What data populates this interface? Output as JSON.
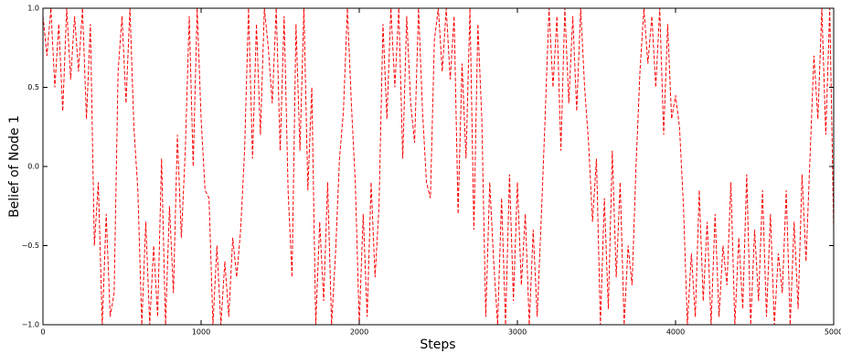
{
  "chart_data": {
    "type": "line",
    "xlabel": "Steps",
    "ylabel": "Belief of Node 1",
    "color": "#ff0000",
    "line_style": "dashed",
    "xlim": [
      0,
      5000
    ],
    "ylim": [
      -1,
      1
    ],
    "xticks": [
      0,
      1000,
      2000,
      3000,
      4000,
      5000
    ],
    "yticks": [
      {
        "value": -1,
        "label": "−1.0"
      },
      {
        "value": -0.5,
        "label": "−0.5"
      },
      {
        "value": 0,
        "label": "0.0"
      },
      {
        "value": 0.5,
        "label": "0.5"
      },
      {
        "value": 1,
        "label": "1.0"
      }
    ],
    "x": [
      0,
      25,
      50,
      75,
      100,
      125,
      150,
      175,
      200,
      225,
      250,
      275,
      300,
      325,
      350,
      375,
      400,
      425,
      450,
      475,
      500,
      525,
      550,
      575,
      600,
      625,
      650,
      675,
      700,
      725,
      750,
      775,
      800,
      825,
      850,
      875,
      900,
      925,
      950,
      975,
      1000,
      1025,
      1050,
      1075,
      1100,
      1125,
      1150,
      1175,
      1200,
      1225,
      1250,
      1275,
      1300,
      1325,
      1350,
      1375,
      1400,
      1425,
      1450,
      1475,
      1500,
      1525,
      1550,
      1575,
      1600,
      1625,
      1650,
      1675,
      1700,
      1725,
      1750,
      1775,
      1800,
      1825,
      1850,
      1875,
      1900,
      1925,
      1950,
      1975,
      2000,
      2025,
      2050,
      2075,
      2100,
      2125,
      2150,
      2175,
      2200,
      2225,
      2250,
      2275,
      2300,
      2325,
      2350,
      2375,
      2400,
      2425,
      2450,
      2475,
      2500,
      2525,
      2550,
      2575,
      2600,
      2625,
      2650,
      2675,
      2700,
      2725,
      2750,
      2775,
      2800,
      2825,
      2850,
      2875,
      2900,
      2925,
      2950,
      2975,
      3000,
      3025,
      3050,
      3075,
      3100,
      3125,
      3150,
      3175,
      3200,
      3225,
      3250,
      3275,
      3300,
      3325,
      3350,
      3375,
      3400,
      3425,
      3450,
      3475,
      3500,
      3525,
      3550,
      3575,
      3600,
      3625,
      3650,
      3675,
      3700,
      3725,
      3750,
      3775,
      3800,
      3825,
      3850,
      3875,
      3900,
      3925,
      3950,
      3975,
      4000,
      4025,
      4050,
      4075,
      4100,
      4125,
      4150,
      4175,
      4200,
      4225,
      4250,
      4275,
      4300,
      4325,
      4350,
      4375,
      4400,
      4425,
      4450,
      4475,
      4500,
      4525,
      4550,
      4575,
      4600,
      4625,
      4650,
      4675,
      4700,
      4725,
      4750,
      4775,
      4800,
      4825,
      4850,
      4875,
      4900,
      4925,
      4950,
      4975,
      5000
    ],
    "values": [
      0.95,
      0.7,
      1.0,
      0.5,
      0.9,
      0.35,
      1.0,
      0.55,
      0.95,
      0.6,
      1.0,
      0.3,
      0.9,
      -0.5,
      -0.1,
      -1.0,
      -0.3,
      -0.95,
      -0.8,
      0.6,
      0.95,
      0.4,
      1.0,
      0.25,
      -0.15,
      -1.0,
      -0.35,
      -1.0,
      -0.5,
      -0.95,
      0.05,
      -1.0,
      -0.25,
      -0.8,
      0.2,
      -0.45,
      0.1,
      0.95,
      0.0,
      1.0,
      0.3,
      -0.15,
      -0.2,
      -1.0,
      -0.5,
      -1.0,
      -0.6,
      -0.95,
      -0.45,
      -0.7,
      -0.4,
      0.1,
      1.0,
      0.05,
      0.9,
      0.2,
      1.0,
      0.75,
      0.4,
      1.0,
      0.1,
      0.95,
      -0.15,
      -0.7,
      0.9,
      0.1,
      1.0,
      -0.15,
      0.5,
      -1.0,
      -0.35,
      -0.85,
      -0.1,
      -1.0,
      -0.55,
      0.05,
      0.35,
      1.0,
      0.4,
      -0.1,
      -1.0,
      -0.3,
      -0.95,
      -0.1,
      -0.7,
      -0.25,
      0.9,
      0.3,
      1.0,
      0.5,
      1.0,
      0.05,
      0.95,
      0.4,
      0.15,
      1.0,
      0.35,
      -0.1,
      -0.2,
      0.8,
      1.0,
      0.6,
      1.0,
      0.55,
      0.95,
      -0.3,
      0.65,
      0.05,
      1.0,
      -0.4,
      0.9,
      0.3,
      -0.95,
      -0.1,
      -0.6,
      -1.0,
      -0.2,
      -1.0,
      -0.05,
      -0.85,
      -0.1,
      -0.75,
      -0.3,
      -1.0,
      -0.4,
      -0.95,
      -0.35,
      0.3,
      1.0,
      0.5,
      0.95,
      0.1,
      1.0,
      0.4,
      0.95,
      0.35,
      1.0,
      0.5,
      0.15,
      -0.35,
      0.05,
      -1.0,
      -0.2,
      -0.9,
      0.1,
      -0.7,
      -0.1,
      -1.0,
      -0.5,
      -0.75,
      0.0,
      0.6,
      1.0,
      0.65,
      0.95,
      0.5,
      1.0,
      0.2,
      0.9,
      0.3,
      0.45,
      0.25,
      -0.25,
      -1.0,
      -0.55,
      -0.95,
      -0.15,
      -0.85,
      -0.35,
      -1.0,
      -0.3,
      -0.95,
      -0.5,
      -0.75,
      -0.1,
      -1.0,
      -0.45,
      -0.9,
      -0.05,
      -1.0,
      -0.4,
      -0.85,
      -0.15,
      -0.95,
      -0.3,
      -1.0,
      -0.55,
      -0.8,
      -0.15,
      -1.0,
      -0.35,
      -0.9,
      -0.05,
      -0.6,
      0.05,
      0.7,
      0.3,
      1.0,
      0.2,
      1.0,
      -0.4
    ]
  }
}
